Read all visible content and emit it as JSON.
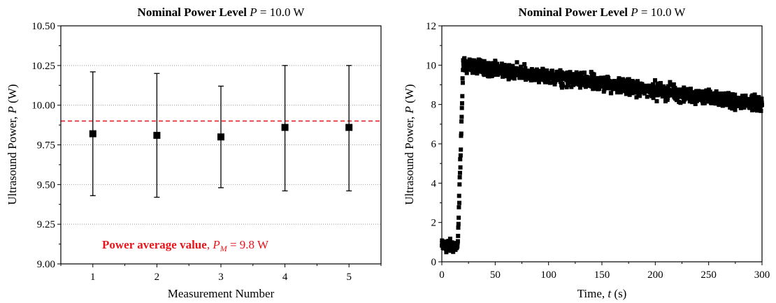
{
  "chart_data": [
    {
      "type": "scatter",
      "title_bold": "Nominal Power Level",
      "title_var": "P",
      "title_rest": " = 10.0 W",
      "xlabel": "Measurement Number",
      "ylabel_text": "Ultrasound Power, ",
      "ylabel_var": "P",
      "ylabel_unit": "  (W)",
      "xlim": [
        0.5,
        5.5
      ],
      "ylim": [
        9.0,
        10.5
      ],
      "xticks": [
        1,
        2,
        3,
        4,
        5
      ],
      "xtick_labels": [
        "1",
        "2",
        "3",
        "4",
        "5"
      ],
      "yticks": [
        9.0,
        9.25,
        9.5,
        9.75,
        10.0,
        10.25,
        10.5
      ],
      "ytick_labels": [
        "9.00",
        "9.25",
        "9.50",
        "9.75",
        "10.00",
        "10.25",
        "10.50"
      ],
      "grid": "horizontal dotted",
      "x": [
        1,
        2,
        3,
        4,
        5
      ],
      "y": [
        9.82,
        9.81,
        9.8,
        9.86,
        9.86
      ],
      "yerr_low": [
        9.43,
        9.42,
        9.48,
        9.46,
        9.46
      ],
      "yerr_high": [
        10.21,
        10.2,
        10.12,
        10.25,
        10.25
      ],
      "reference_line": {
        "y": 9.9,
        "color": "#e8141a",
        "style": "dashed"
      },
      "annotation": {
        "bold": "Power average value",
        "sep": ", ",
        "var": "P",
        "sub": "M",
        "rest": " = 9.8 W"
      },
      "colors": {
        "marker": "#000000",
        "annotation": "#e8141a",
        "grid": "#999999"
      }
    },
    {
      "type": "scatter",
      "title_bold": "Nominal Power Level",
      "title_var": "P",
      "title_rest": " = 10.0 W",
      "xlabel_text": "Time, ",
      "xlabel_var": "t",
      "xlabel_unit": " (s)",
      "ylabel_text": "Ultrasound Power, ",
      "ylabel_var": "P",
      "ylabel_unit": "  (W)",
      "xlim": [
        0,
        300
      ],
      "ylim": [
        0,
        12
      ],
      "xticks": [
        0,
        50,
        100,
        150,
        200,
        250,
        300
      ],
      "xtick_labels": [
        "0",
        "50",
        "100",
        "150",
        "200",
        "250",
        "300"
      ],
      "yticks": [
        0,
        2,
        4,
        6,
        8,
        10,
        12
      ],
      "ytick_labels": [
        "0",
        "2",
        "4",
        "6",
        "8",
        "10",
        "12"
      ],
      "grid": "off",
      "series_description": "approx. 1500 square markers sampled every 0.2 s",
      "phases": [
        {
          "x_range": [
            0,
            15
          ],
          "mean": 0.8,
          "spread": 0.5
        },
        {
          "x_range": [
            15,
            20
          ],
          "ramp_from": 0.8,
          "ramp_to": 10.0
        },
        {
          "x_range": [
            20,
            300
          ],
          "mean_start": 10.0,
          "mean_end": 8.0,
          "spread": 0.4
        }
      ],
      "x_step": 0.2,
      "colors": {
        "marker": "#000000"
      }
    }
  ]
}
